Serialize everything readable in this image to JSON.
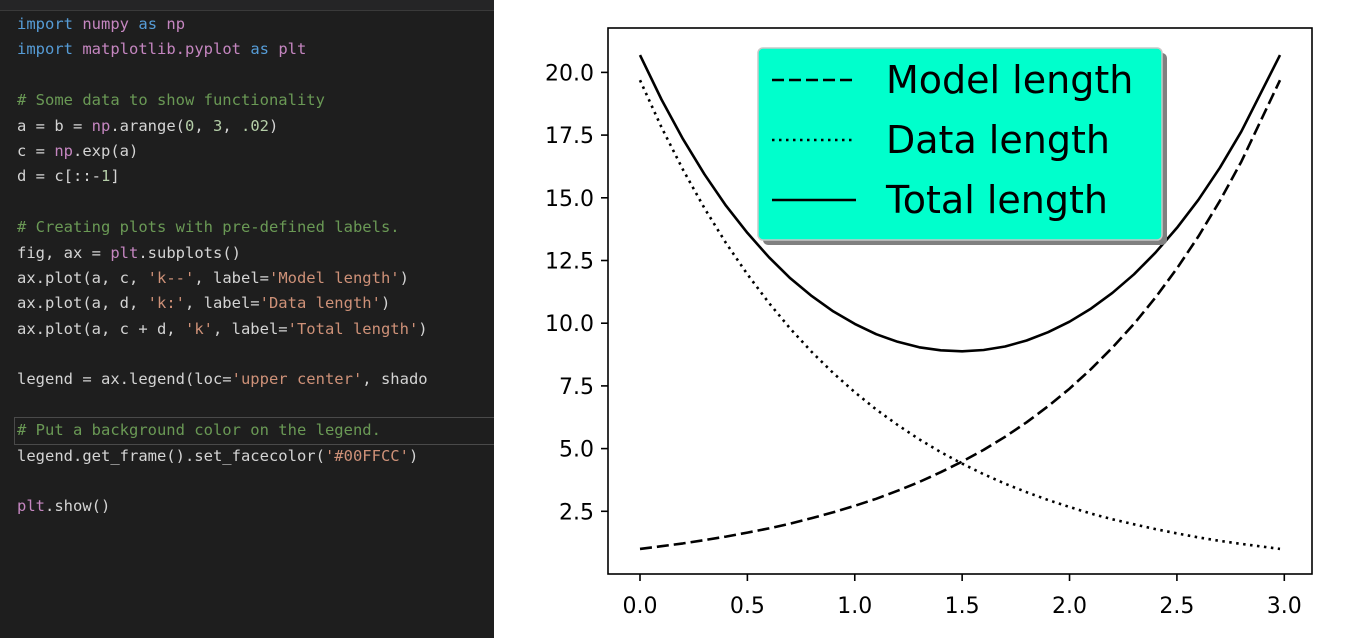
{
  "editor": {
    "current_line_index": 16,
    "lines": [
      [
        {
          "t": "import",
          "c": "kw"
        },
        {
          "t": " ",
          "c": "plain"
        },
        {
          "t": "numpy",
          "c": "mod"
        },
        {
          "t": " ",
          "c": "plain"
        },
        {
          "t": "as",
          "c": "kw"
        },
        {
          "t": " ",
          "c": "plain"
        },
        {
          "t": "np",
          "c": "mod"
        }
      ],
      [
        {
          "t": "import",
          "c": "kw"
        },
        {
          "t": " ",
          "c": "plain"
        },
        {
          "t": "matplotlib.pyplot",
          "c": "mod"
        },
        {
          "t": " ",
          "c": "plain"
        },
        {
          "t": "as",
          "c": "kw"
        },
        {
          "t": " ",
          "c": "plain"
        },
        {
          "t": "plt",
          "c": "mod"
        }
      ],
      [],
      [
        {
          "t": "# Some data to show functionality",
          "c": "comment"
        }
      ],
      [
        {
          "t": "a = b = ",
          "c": "plain"
        },
        {
          "t": "np",
          "c": "mod"
        },
        {
          "t": ".arange(",
          "c": "plain"
        },
        {
          "t": "0",
          "c": "num"
        },
        {
          "t": ", ",
          "c": "plain"
        },
        {
          "t": "3",
          "c": "num"
        },
        {
          "t": ", ",
          "c": "plain"
        },
        {
          "t": ".02",
          "c": "num"
        },
        {
          "t": ")",
          "c": "plain"
        }
      ],
      [
        {
          "t": "c = ",
          "c": "plain"
        },
        {
          "t": "np",
          "c": "mod"
        },
        {
          "t": ".exp(a)",
          "c": "plain"
        }
      ],
      [
        {
          "t": "d = c[::-",
          "c": "plain"
        },
        {
          "t": "1",
          "c": "num"
        },
        {
          "t": "]",
          "c": "plain"
        }
      ],
      [],
      [
        {
          "t": "# Creating plots with pre-defined labels.",
          "c": "comment"
        }
      ],
      [
        {
          "t": "fig, ax = ",
          "c": "plain"
        },
        {
          "t": "plt",
          "c": "mod"
        },
        {
          "t": ".subplots()",
          "c": "plain"
        }
      ],
      [
        {
          "t": "ax.plot(a, c, ",
          "c": "plain"
        },
        {
          "t": "'k--'",
          "c": "str"
        },
        {
          "t": ", label=",
          "c": "plain"
        },
        {
          "t": "'Model length'",
          "c": "str"
        },
        {
          "t": ")",
          "c": "plain"
        }
      ],
      [
        {
          "t": "ax.plot(a, d, ",
          "c": "plain"
        },
        {
          "t": "'k:'",
          "c": "str"
        },
        {
          "t": ", label=",
          "c": "plain"
        },
        {
          "t": "'Data length'",
          "c": "str"
        },
        {
          "t": ")",
          "c": "plain"
        }
      ],
      [
        {
          "t": "ax.plot(a, c + d, ",
          "c": "plain"
        },
        {
          "t": "'k'",
          "c": "str"
        },
        {
          "t": ", label=",
          "c": "plain"
        },
        {
          "t": "'Total length'",
          "c": "str"
        },
        {
          "t": ")",
          "c": "plain"
        }
      ],
      [],
      [
        {
          "t": "legend = ax.legend(loc=",
          "c": "plain"
        },
        {
          "t": "'upper center'",
          "c": "str"
        },
        {
          "t": ", shado",
          "c": "plain"
        }
      ],
      [],
      [
        {
          "t": "# Put a background color on the legend.",
          "c": "comment"
        }
      ],
      [
        {
          "t": "legend.get_frame().set_facecolor(",
          "c": "plain"
        },
        {
          "t": "'#00FFCC'",
          "c": "str"
        },
        {
          "t": ")",
          "c": "plain"
        }
      ],
      [],
      [
        {
          "t": "plt",
          "c": "mod"
        },
        {
          "t": ".show()",
          "c": "plain"
        }
      ]
    ]
  },
  "chart_data": {
    "type": "line",
    "title": "",
    "xlabel": "",
    "ylabel": "",
    "xlim": [
      -0.149,
      3.129
    ],
    "ylim": [
      0.0,
      21.77
    ],
    "x_ticks": [
      "0.0",
      "0.5",
      "1.0",
      "1.5",
      "2.0",
      "2.5",
      "3.0"
    ],
    "y_ticks": [
      "2.5",
      "5.0",
      "7.5",
      "10.0",
      "12.5",
      "15.0",
      "17.5",
      "20.0"
    ],
    "x_tick_values": [
      0.0,
      0.5,
      1.0,
      1.5,
      2.0,
      2.5,
      3.0
    ],
    "y_tick_values": [
      2.5,
      5.0,
      7.5,
      10.0,
      12.5,
      15.0,
      17.5,
      20.0
    ],
    "grid": false,
    "x": [
      0.0,
      0.1,
      0.2,
      0.3,
      0.4,
      0.5,
      0.6,
      0.7,
      0.8,
      0.9,
      1.0,
      1.1,
      1.2,
      1.3,
      1.4,
      1.5,
      1.6,
      1.7,
      1.8,
      1.9,
      2.0,
      2.1,
      2.2,
      2.3,
      2.4,
      2.5,
      2.6,
      2.7,
      2.8,
      2.98
    ],
    "series": [
      {
        "name": "Model length",
        "style": "dashed",
        "values": [
          1.0,
          1.11,
          1.22,
          1.35,
          1.49,
          1.65,
          1.82,
          2.01,
          2.23,
          2.46,
          2.72,
          3.0,
          3.32,
          3.67,
          4.06,
          4.48,
          4.95,
          5.47,
          6.05,
          6.69,
          7.39,
          8.17,
          9.03,
          9.97,
          11.02,
          12.18,
          13.46,
          14.88,
          16.44,
          19.69
        ]
      },
      {
        "name": "Data length",
        "style": "dotted",
        "values": [
          19.69,
          17.81,
          16.12,
          14.59,
          13.2,
          11.95,
          10.81,
          9.78,
          8.85,
          8.01,
          7.25,
          6.56,
          5.94,
          5.37,
          4.86,
          4.4,
          3.98,
          3.6,
          3.26,
          2.95,
          2.67,
          2.41,
          2.18,
          1.98,
          1.79,
          1.62,
          1.46,
          1.32,
          1.2,
          1.0
        ]
      },
      {
        "name": "Total length",
        "style": "solid",
        "values": [
          20.69,
          18.92,
          17.34,
          15.94,
          14.69,
          13.6,
          12.63,
          11.79,
          11.08,
          10.47,
          9.97,
          9.56,
          9.26,
          9.04,
          8.92,
          8.88,
          8.93,
          9.07,
          9.31,
          9.64,
          10.06,
          10.58,
          11.21,
          11.95,
          12.81,
          13.8,
          14.92,
          16.2,
          17.64,
          20.69
        ]
      }
    ],
    "legend": {
      "placement": "upper center",
      "facecolor": "#00FFCC",
      "shadow": true,
      "entries": [
        "Model length",
        "Data length",
        "Total length"
      ]
    }
  }
}
